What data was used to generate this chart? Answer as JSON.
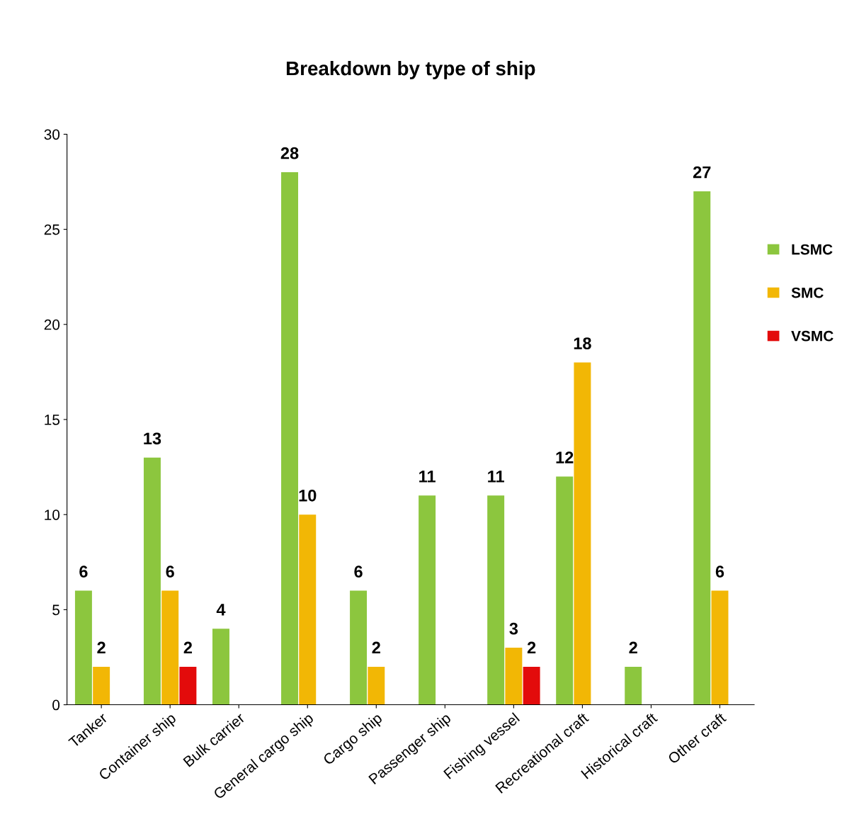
{
  "chart_data": {
    "type": "bar",
    "title": "Breakdown by type of ship",
    "categories": [
      "Tanker",
      "Container ship",
      "Bulk carrier",
      "General cargo ship",
      "Cargo ship",
      "Passenger ship",
      "Fishing vessel",
      "Recreational craft",
      "Historical craft",
      "Other craft"
    ],
    "series": [
      {
        "name": "LSMC",
        "color": "#8cc63e",
        "values": [
          6,
          13,
          4,
          28,
          6,
          11,
          11,
          12,
          2,
          27
        ]
      },
      {
        "name": "SMC",
        "color": "#f2b705",
        "values": [
          2,
          6,
          null,
          10,
          2,
          null,
          3,
          18,
          null,
          6
        ]
      },
      {
        "name": "VSMC",
        "color": "#e30b0b",
        "values": [
          null,
          2,
          null,
          null,
          null,
          null,
          2,
          null,
          null,
          null
        ]
      }
    ],
    "ylim": [
      0,
      30
    ],
    "yticks": [
      0,
      5,
      10,
      15,
      20,
      25,
      30
    ],
    "data_labels": true,
    "grid": false,
    "legend": "right"
  }
}
